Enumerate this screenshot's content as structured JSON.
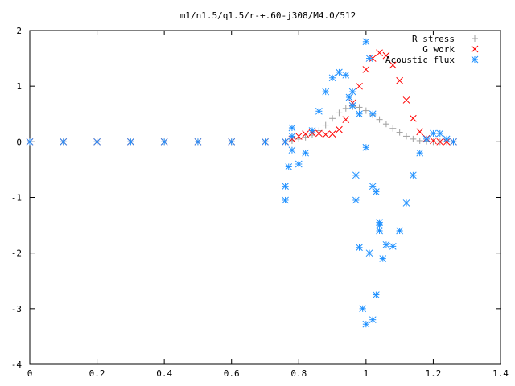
{
  "chart_data": {
    "type": "scatter",
    "title": "m1/n1.5/q1.5/r-+.60-j308/M4.0/512",
    "xlabel": "",
    "ylabel": "",
    "xlim": [
      0,
      1.4
    ],
    "ylim": [
      -4,
      2
    ],
    "x_ticks": [
      "0",
      "0.2",
      "0.4",
      "0.6",
      "0.8",
      "1",
      "1.2",
      "1.4"
    ],
    "y_ticks": [
      "2",
      "1",
      "0",
      "-1",
      "-2",
      "-3",
      "-4"
    ],
    "legend_position": "top-right",
    "series": [
      {
        "name": "R stress",
        "marker": "+",
        "color": "#a0a0a0",
        "points": [
          [
            0.0,
            0.0
          ],
          [
            0.1,
            0.0
          ],
          [
            0.2,
            0.0
          ],
          [
            0.3,
            0.0
          ],
          [
            0.4,
            0.0
          ],
          [
            0.5,
            0.0
          ],
          [
            0.6,
            0.0
          ],
          [
            0.7,
            0.0
          ],
          [
            0.76,
            0.0
          ],
          [
            0.78,
            0.02
          ],
          [
            0.8,
            0.05
          ],
          [
            0.82,
            0.08
          ],
          [
            0.84,
            0.12
          ],
          [
            0.86,
            0.2
          ],
          [
            0.88,
            0.3
          ],
          [
            0.9,
            0.42
          ],
          [
            0.92,
            0.52
          ],
          [
            0.94,
            0.6
          ],
          [
            0.96,
            0.63
          ],
          [
            0.98,
            0.62
          ],
          [
            1.0,
            0.56
          ],
          [
            1.02,
            0.48
          ],
          [
            1.04,
            0.4
          ],
          [
            1.06,
            0.32
          ],
          [
            1.08,
            0.24
          ],
          [
            1.1,
            0.17
          ],
          [
            1.12,
            0.1
          ],
          [
            1.14,
            0.05
          ],
          [
            1.16,
            0.02
          ],
          [
            1.18,
            0.01
          ],
          [
            1.2,
            0.0
          ],
          [
            1.22,
            0.0
          ],
          [
            1.24,
            0.0
          ],
          [
            1.26,
            0.0
          ]
        ]
      },
      {
        "name": "G work",
        "marker": "x",
        "color": "#ff0000",
        "points": [
          [
            0.0,
            0.0
          ],
          [
            0.1,
            0.0
          ],
          [
            0.2,
            0.0
          ],
          [
            0.3,
            0.0
          ],
          [
            0.4,
            0.0
          ],
          [
            0.5,
            0.0
          ],
          [
            0.6,
            0.0
          ],
          [
            0.7,
            0.0
          ],
          [
            0.76,
            0.0
          ],
          [
            0.78,
            0.05
          ],
          [
            0.8,
            0.1
          ],
          [
            0.82,
            0.14
          ],
          [
            0.84,
            0.16
          ],
          [
            0.86,
            0.15
          ],
          [
            0.88,
            0.13
          ],
          [
            0.9,
            0.14
          ],
          [
            0.92,
            0.22
          ],
          [
            0.94,
            0.4
          ],
          [
            0.96,
            0.7
          ],
          [
            0.98,
            1.0
          ],
          [
            1.0,
            1.3
          ],
          [
            1.02,
            1.5
          ],
          [
            1.04,
            1.6
          ],
          [
            1.06,
            1.55
          ],
          [
            1.08,
            1.38
          ],
          [
            1.1,
            1.1
          ],
          [
            1.12,
            0.75
          ],
          [
            1.14,
            0.42
          ],
          [
            1.16,
            0.18
          ],
          [
            1.18,
            0.06
          ],
          [
            1.2,
            0.02
          ],
          [
            1.22,
            0.0
          ],
          [
            1.24,
            0.0
          ],
          [
            1.26,
            0.0
          ]
        ]
      },
      {
        "name": "Acoustic flux",
        "marker": "*",
        "color": "#1e90ff",
        "points": [
          [
            0.0,
            0.0
          ],
          [
            0.1,
            0.0
          ],
          [
            0.2,
            0.0
          ],
          [
            0.3,
            0.0
          ],
          [
            0.4,
            0.0
          ],
          [
            0.5,
            0.0
          ],
          [
            0.6,
            0.0
          ],
          [
            0.7,
            0.0
          ],
          [
            0.76,
            0.0
          ],
          [
            0.78,
            -0.15
          ],
          [
            0.8,
            -0.4
          ],
          [
            0.82,
            -0.2
          ],
          [
            0.84,
            0.2
          ],
          [
            0.86,
            0.55
          ],
          [
            0.88,
            0.9
          ],
          [
            0.9,
            1.15
          ],
          [
            0.92,
            1.25
          ],
          [
            0.94,
            1.2
          ],
          [
            0.96,
            0.9
          ],
          [
            0.98,
            0.5
          ],
          [
            1.0,
            -0.1
          ],
          [
            1.02,
            -0.8
          ],
          [
            1.04,
            -1.5
          ],
          [
            1.06,
            -1.85
          ],
          [
            1.08,
            -1.88
          ],
          [
            1.1,
            -1.6
          ],
          [
            1.12,
            -1.1
          ],
          [
            1.14,
            -0.6
          ],
          [
            1.16,
            -0.2
          ],
          [
            1.18,
            0.05
          ],
          [
            1.2,
            0.15
          ],
          [
            1.22,
            0.15
          ],
          [
            1.24,
            0.05
          ],
          [
            1.26,
            0.0
          ],
          [
            0.76,
            -1.05
          ],
          [
            0.76,
            -0.8
          ],
          [
            0.77,
            -0.45
          ],
          [
            0.78,
            0.1
          ],
          [
            0.78,
            0.25
          ],
          [
            0.95,
            0.8
          ],
          [
            0.96,
            0.65
          ],
          [
            0.97,
            -0.6
          ],
          [
            0.97,
            -1.05
          ],
          [
            0.98,
            -1.9
          ],
          [
            0.99,
            -3.0
          ],
          [
            1.0,
            -3.28
          ],
          [
            1.01,
            -2.0
          ],
          [
            1.02,
            -3.2
          ],
          [
            1.03,
            -2.75
          ],
          [
            1.04,
            -1.45
          ],
          [
            1.05,
            -2.1
          ],
          [
            1.0,
            1.8
          ],
          [
            1.01,
            1.5
          ],
          [
            1.02,
            0.5
          ],
          [
            1.03,
            -0.9
          ],
          [
            1.04,
            -1.6
          ]
        ]
      }
    ]
  }
}
